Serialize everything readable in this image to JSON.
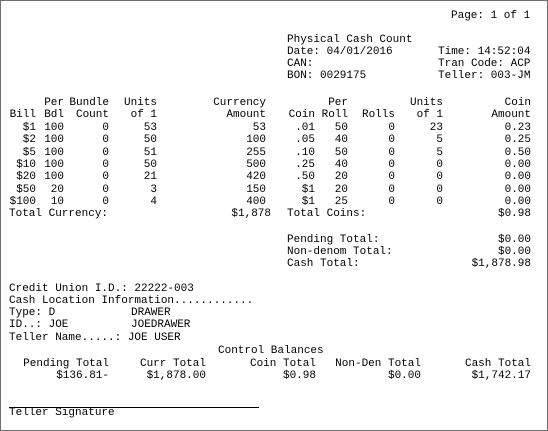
{
  "page_label": "Page: 1 of 1",
  "title": "Physical Cash Count",
  "header": {
    "date": "Date: 04/01/2016",
    "time": "Time: 14:52:04",
    "can": "CAN:",
    "tran_code": "Tran Code: ACP",
    "bon": "BON: 0029175",
    "teller": "Teller: 003-JM"
  },
  "bill_headers": {
    "h1": [
      "",
      "Per",
      "Bundle",
      "Units",
      "Currency"
    ],
    "h2": [
      "Bill",
      "Bdl",
      "Count",
      "of 1",
      "Amount"
    ]
  },
  "coin_headers": {
    "h1": [
      "",
      "Per",
      "",
      "Units",
      "Coin"
    ],
    "h2": [
      "Coin",
      "Roll",
      "Rolls",
      "of 1",
      "Amount"
    ]
  },
  "bills": [
    [
      "$1",
      "100",
      "0",
      "53",
      "53"
    ],
    [
      "$2",
      "100",
      "0",
      "50",
      "100"
    ],
    [
      "$5",
      "100",
      "0",
      "51",
      "255"
    ],
    [
      "$10",
      "100",
      "0",
      "50",
      "500"
    ],
    [
      "$20",
      "100",
      "0",
      "21",
      "420"
    ],
    [
      "$50",
      "20",
      "0",
      "3",
      "150"
    ],
    [
      "$100",
      "10",
      "0",
      "4",
      "400"
    ]
  ],
  "coins": [
    [
      ".01",
      "50",
      "0",
      "23",
      "0.23"
    ],
    [
      ".05",
      "40",
      "0",
      "5",
      "0.25"
    ],
    [
      ".10",
      "50",
      "0",
      "5",
      "0.50"
    ],
    [
      ".25",
      "40",
      "0",
      "0",
      "0.00"
    ],
    [
      ".50",
      "20",
      "0",
      "0",
      "0.00"
    ],
    [
      "$1",
      "20",
      "0",
      "0",
      "0.00"
    ],
    [
      "$1",
      "25",
      "0",
      "0",
      "0.00"
    ]
  ],
  "totals": {
    "currency_label": "Total Currency:",
    "currency_value": "$1,878",
    "coins_label": "Total Coins:",
    "coins_value": "$0.98",
    "pending_label": "Pending Total:",
    "pending_value": "$0.00",
    "nondenom_label": "Non-denom Total:",
    "nondenom_value": "$0.00",
    "cash_label": "Cash Total:",
    "cash_value": "$1,878.98"
  },
  "info": {
    "credit_union": "Credit Union I.D.: 22222-003",
    "cash_location": "Cash Location Information............",
    "type_label": "Type: D",
    "type_value": "DRAWER",
    "id_label": "ID..: JOE",
    "id_value": "JOEDRAWER",
    "teller_label": "Teller Name.....: JOE USER"
  },
  "control": {
    "title": "Control Balances",
    "headers": [
      "Pending Total",
      "Curr Total",
      "Coin Total",
      "Non-Den Total",
      "Cash Total"
    ],
    "values": [
      "$136.81-",
      "$1,878.00",
      "$0.98",
      "$0.00",
      "$1,742.17"
    ]
  },
  "signature_label": "Teller Signature"
}
